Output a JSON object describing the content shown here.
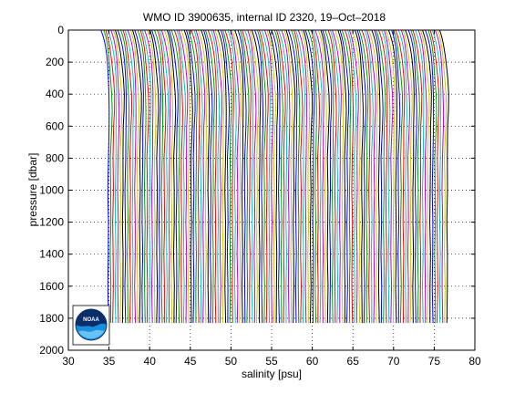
{
  "chart_data": {
    "type": "line",
    "title": "WMO ID 3900635, internal ID 2320, 19–Oct–2018",
    "xlabel": "salinity [psu]",
    "ylabel": "pressure [dbar]",
    "xlim": [
      30,
      80
    ],
    "ylim": [
      2000,
      0
    ],
    "y_reversed": true,
    "xticks": [
      30,
      35,
      40,
      45,
      50,
      55,
      60,
      65,
      70,
      75,
      80
    ],
    "yticks": [
      0,
      200,
      400,
      600,
      800,
      1000,
      1200,
      1400,
      1600,
      1800,
      2000
    ],
    "grid": true,
    "grid_style": "dotted",
    "legend": "none",
    "series_description": "Waterfall of salinity profiles, each successive profile offset to the right by 0.3 psu",
    "profile_count": 140,
    "first_profile_deep_salinity": 34.9,
    "profile_offset_psu": 0.3,
    "profile_max_pressure": 1830,
    "series_colors": [
      "#0000ff",
      "#00a000",
      "#ff0000",
      "#00c8c8",
      "#c800c8",
      "#c8c800",
      "#000000"
    ],
    "logo": "noaa-logo"
  }
}
